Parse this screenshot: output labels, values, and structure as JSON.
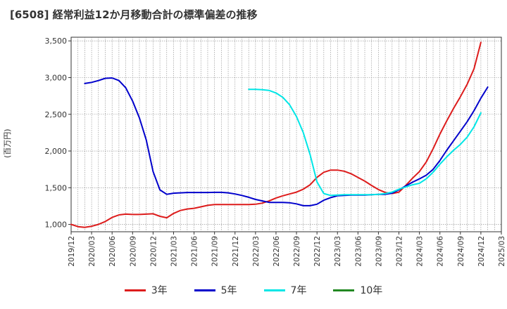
{
  "chart_data": {
    "type": "line",
    "title": "[6508]  経常利益12か月移動合計の標準偏差の推移",
    "ylabel": "(百万円)",
    "xlabel": "",
    "ylim": [
      900,
      3550
    ],
    "yticks": [
      1000,
      1500,
      2000,
      2500,
      3000,
      3500
    ],
    "ytick_labels": [
      "1,000",
      "1,500",
      "2,000",
      "2,500",
      "3,000",
      "3,500"
    ],
    "x_range": [
      "2019-12",
      "2025-03"
    ],
    "xtick_labels": [
      "2019/12",
      "2020/03",
      "2020/06",
      "2020/09",
      "2020/12",
      "2021/03",
      "2021/06",
      "2021/09",
      "2021/12",
      "2022/03",
      "2022/06",
      "2022/09",
      "2022/12",
      "2023/03",
      "2023/06",
      "2023/09",
      "2023/12",
      "2024/03",
      "2024/06",
      "2024/09",
      "2024/12",
      "2025/03"
    ],
    "grid": true,
    "legend_position": "bottom",
    "series": [
      {
        "name": "3年",
        "color": "#dd1c1c",
        "start": "2019-12",
        "values": [
          1000,
          970,
          960,
          975,
          1000,
          1040,
          1095,
          1130,
          1140,
          1135,
          1135,
          1140,
          1145,
          1110,
          1090,
          1150,
          1190,
          1210,
          1220,
          1240,
          1260,
          1270,
          1270,
          1270,
          1270,
          1270,
          1270,
          1275,
          1290,
          1320,
          1360,
          1390,
          1415,
          1440,
          1480,
          1540,
          1640,
          1710,
          1740,
          1740,
          1725,
          1690,
          1640,
          1590,
          1530,
          1475,
          1435,
          1420,
          1440,
          1530,
          1630,
          1720,
          1850,
          2030,
          2230,
          2410,
          2580,
          2740,
          2910,
          3120,
          3480
        ]
      },
      {
        "name": "5年",
        "color": "#0000cc",
        "start": "2020-02",
        "values": [
          2920,
          2935,
          2960,
          2990,
          2995,
          2960,
          2860,
          2680,
          2450,
          2150,
          1720,
          1470,
          1410,
          1425,
          1430,
          1435,
          1435,
          1435,
          1435,
          1437,
          1437,
          1430,
          1415,
          1395,
          1370,
          1340,
          1320,
          1300,
          1300,
          1300,
          1295,
          1280,
          1255,
          1255,
          1275,
          1330,
          1365,
          1390,
          1395,
          1400,
          1400,
          1400,
          1405,
          1410,
          1410,
          1425,
          1470,
          1525,
          1575,
          1620,
          1670,
          1750,
          1870,
          2010,
          2140,
          2270,
          2400,
          2550,
          2720,
          2870
        ]
      },
      {
        "name": "7年",
        "color": "#00e6e6",
        "start": "2022-02",
        "values": [
          2840,
          2840,
          2835,
          2825,
          2790,
          2730,
          2630,
          2470,
          2250,
          1950,
          1580,
          1420,
          1395,
          1400,
          1405,
          1405,
          1405,
          1405,
          1405,
          1410,
          1420,
          1440,
          1480,
          1510,
          1540,
          1560,
          1620,
          1710,
          1820,
          1920,
          2010,
          2090,
          2190,
          2330,
          2520
        ]
      },
      {
        "name": "10年",
        "color": "#228822",
        "start": "2019-12",
        "values": []
      }
    ]
  }
}
